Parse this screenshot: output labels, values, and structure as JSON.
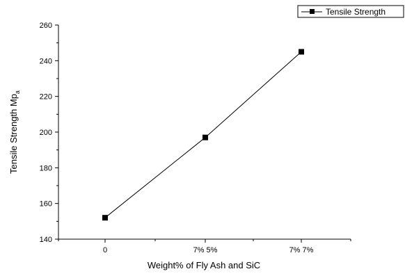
{
  "chart_data": {
    "type": "line",
    "categories": [
      "0",
      "7% 5%",
      "7% 7%"
    ],
    "series": [
      {
        "name": "Tensile Strength",
        "values": [
          152,
          197,
          245
        ],
        "color": "#000000",
        "marker": "square"
      }
    ],
    "xlabel": "Weight% of Fly Ash and SiC",
    "ylabel": "Tensile Strength Mp",
    "ylabel_subscript": "a",
    "ylim": [
      140,
      260
    ],
    "yticks": [
      140,
      160,
      180,
      200,
      220,
      240,
      260
    ],
    "grid": false,
    "legend": "top-right"
  }
}
